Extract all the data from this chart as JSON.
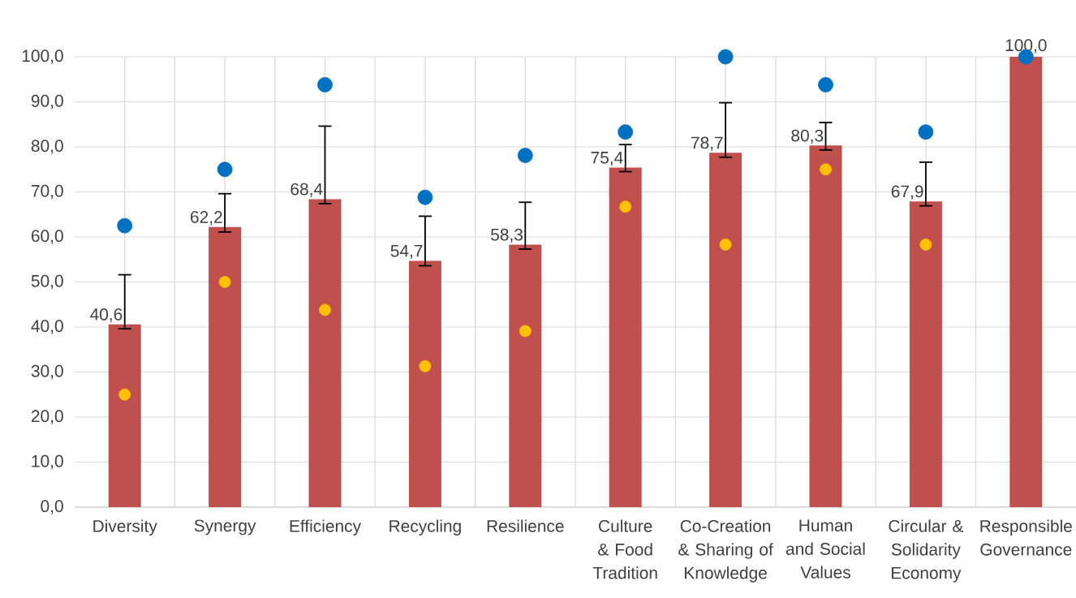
{
  "chart_data": {
    "type": "bar",
    "categories": [
      "Diversity",
      "Synergy",
      "Efficiency",
      "Recycling",
      "Resilience",
      "Culture & Food Tradition",
      "Co-Creation & Sharing of Knowledge",
      "Human and Social Values",
      "Circular & Solidarity Economy",
      "Responsible Governance"
    ],
    "series": [
      {
        "color": "#c0504d",
        "values": [
          40.6,
          62.2,
          68.4,
          54.7,
          58.3,
          75.4,
          78.7,
          80.3,
          67.9,
          100.0
        ],
        "value_labels": [
          "40,6",
          "62,2",
          "68,4",
          "54,7",
          "58,3",
          "75,4",
          "78,7",
          "80,3",
          "67,9",
          "100,0"
        ],
        "errors": [
          [
            39.6,
            51.6
          ],
          [
            61.1,
            69.6
          ],
          [
            67.4,
            84.6
          ],
          [
            53.6,
            64.6
          ],
          [
            57.3,
            67.7
          ],
          [
            74.5,
            80.5
          ],
          [
            77.7,
            89.8
          ],
          [
            79.3,
            85.4
          ],
          [
            66.9,
            76.6
          ],
          null
        ]
      },
      {
        "type": "scatter",
        "color": "#0070c0",
        "x": [
          "Diversity",
          "Synergy",
          "Efficiency",
          "Recycling",
          "Resilience",
          "Culture & Food Tradition",
          "Co-Creation & Sharing of Knowledge",
          "Human and Social Values",
          "Circular & Solidarity Economy",
          "Responsible Governance"
        ],
        "values": [
          62.5,
          75.0,
          93.8,
          68.8,
          78.1,
          83.3,
          100.0,
          93.8,
          83.3,
          100.0
        ]
      },
      {
        "type": "scatter",
        "color": "#ffc000",
        "x": [
          "Diversity",
          "Synergy",
          "Efficiency",
          "Recycling",
          "Resilience",
          "Culture & Food Tradition",
          "Co-Creation & Sharing of Knowledge",
          "Human and Social Values",
          "Circular & Solidarity Economy",
          "Responsible Governance"
        ],
        "values": [
          25.0,
          50.0,
          43.8,
          31.3,
          39.1,
          66.7,
          58.3,
          75.0,
          58.3,
          null
        ]
      }
    ],
    "ylim": [
      0,
      100
    ],
    "yticks": [
      {
        "value": 0,
        "label": "0,0"
      },
      {
        "value": 10,
        "label": "10,0"
      },
      {
        "value": 20,
        "label": "20,0"
      },
      {
        "value": 30,
        "label": "30,0"
      },
      {
        "value": 40,
        "label": "40,0"
      },
      {
        "value": 50,
        "label": "50,0"
      },
      {
        "value": 60,
        "label": "60,0"
      },
      {
        "value": 70,
        "label": "70,0"
      },
      {
        "value": 80,
        "label": "80,0"
      },
      {
        "value": 90,
        "label": "90,0"
      },
      {
        "value": 100,
        "label": "100,0"
      }
    ],
    "grid": true,
    "marker": "circle"
  }
}
